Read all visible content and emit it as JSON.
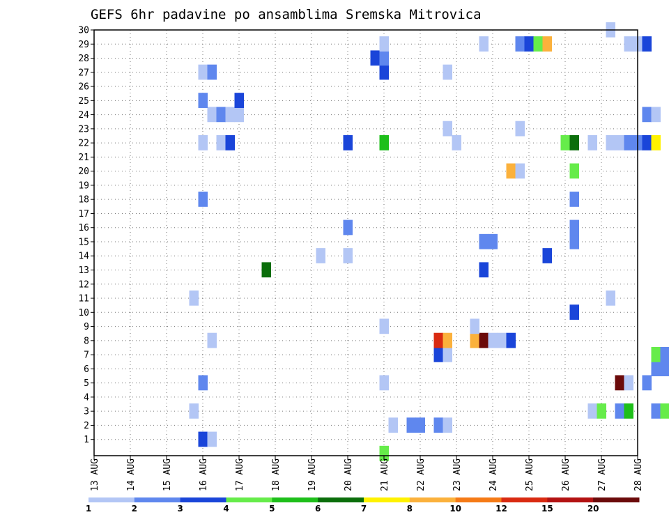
{
  "chart_data": {
    "type": "heatmap",
    "title": "GEFS 6hr padavine po ansamblima Sremska Mitrovica",
    "xlabel": "",
    "ylabel": "",
    "x_tick_labels": [
      "13 AUG",
      "14 AUG",
      "15 AUG",
      "16 AUG",
      "17 AUG",
      "18 AUG",
      "19 AUG",
      "20 AUG",
      "21 AUG",
      "22 AUG",
      "23 AUG",
      "24 AUG",
      "25 AUG",
      "26 AUG",
      "27 AUG",
      "28 AUG"
    ],
    "x_range_days": [
      0,
      15
    ],
    "y_tick_labels": [
      "1",
      "2",
      "3",
      "4",
      "5",
      "6",
      "7",
      "8",
      "9",
      "10",
      "11",
      "12",
      "13",
      "14",
      "15",
      "16",
      "17",
      "18",
      "19",
      "20",
      "21",
      "22",
      "23",
      "24",
      "25",
      "26",
      "27",
      "28",
      "29",
      "30"
    ],
    "y_range": [
      0,
      30
    ],
    "grid": true,
    "legend": {
      "placement": "bottom",
      "colors": [
        "#b3c6f5",
        "#5f87ee",
        "#1a45d9",
        "#66ec4a",
        "#1ebf1a",
        "#0b6e0b",
        "#fff200",
        "#fbb13c",
        "#f57a16",
        "#d92a11",
        "#b31212",
        "#6b0a0a"
      ],
      "labels": [
        "1",
        "2",
        "3",
        "4",
        "5",
        "6",
        "7",
        "8",
        "10",
        "12",
        "15",
        "20"
      ]
    },
    "cells": [
      {
        "day": 3.0,
        "m": 1,
        "c": 2
      },
      {
        "day": 3.25,
        "m": 1,
        "c": 0
      },
      {
        "day": 8.25,
        "m": 2,
        "c": 0
      },
      {
        "day": 8.75,
        "m": 2,
        "c": 1
      },
      {
        "day": 9.0,
        "m": 2,
        "c": 1
      },
      {
        "day": 9.5,
        "m": 2,
        "c": 1
      },
      {
        "day": 9.75,
        "m": 2,
        "c": 0
      },
      {
        "day": 2.75,
        "m": 3,
        "c": 0
      },
      {
        "day": 13.75,
        "m": 3,
        "c": 0
      },
      {
        "day": 14.0,
        "m": 3,
        "c": 3
      },
      {
        "day": 14.5,
        "m": 3,
        "c": 1
      },
      {
        "day": 14.75,
        "m": 3,
        "c": 4
      },
      {
        "day": 15.5,
        "m": 3,
        "c": 1
      },
      {
        "day": 15.75,
        "m": 3,
        "c": 3
      },
      {
        "day": 3.0,
        "m": 5,
        "c": 1
      },
      {
        "day": 8.0,
        "m": 5,
        "c": 0
      },
      {
        "day": 14.5,
        "m": 5,
        "c": 11
      },
      {
        "day": 14.75,
        "m": 5,
        "c": 0
      },
      {
        "day": 15.25,
        "m": 5,
        "c": 1
      },
      {
        "day": 15.5,
        "m": 6,
        "c": 1
      },
      {
        "day": 15.75,
        "m": 6,
        "c": 1
      },
      {
        "day": 9.5,
        "m": 7,
        "c": 2
      },
      {
        "day": 9.75,
        "m": 7,
        "c": 0
      },
      {
        "day": 15.5,
        "m": 7,
        "c": 3
      },
      {
        "day": 15.75,
        "m": 7,
        "c": 1
      },
      {
        "day": 3.25,
        "m": 8,
        "c": 0
      },
      {
        "day": 9.5,
        "m": 8,
        "c": 9
      },
      {
        "day": 9.75,
        "m": 8,
        "c": 7
      },
      {
        "day": 10.5,
        "m": 8,
        "c": 7
      },
      {
        "day": 10.75,
        "m": 8,
        "c": 11
      },
      {
        "day": 11.0,
        "m": 8,
        "c": 0
      },
      {
        "day": 11.25,
        "m": 8,
        "c": 0
      },
      {
        "day": 11.5,
        "m": 8,
        "c": 2
      },
      {
        "day": 8.0,
        "m": 9,
        "c": 0
      },
      {
        "day": 10.5,
        "m": 9,
        "c": 0
      },
      {
        "day": 13.25,
        "m": 10,
        "c": 2
      },
      {
        "day": 2.75,
        "m": 11,
        "c": 0
      },
      {
        "day": 14.25,
        "m": 11,
        "c": 0
      },
      {
        "day": 4.75,
        "m": 13,
        "c": 5
      },
      {
        "day": 10.75,
        "m": 13,
        "c": 2
      },
      {
        "day": 6.25,
        "m": 14,
        "c": 0
      },
      {
        "day": 7.0,
        "m": 14,
        "c": 0
      },
      {
        "day": 12.5,
        "m": 14,
        "c": 2
      },
      {
        "day": 10.75,
        "m": 15,
        "c": 1
      },
      {
        "day": 11.0,
        "m": 15,
        "c": 1
      },
      {
        "day": 13.25,
        "m": 15,
        "c": 1
      },
      {
        "day": 7.0,
        "m": 16,
        "c": 1
      },
      {
        "day": 13.25,
        "m": 16,
        "c": 1
      },
      {
        "day": 3.0,
        "m": 18,
        "c": 1
      },
      {
        "day": 13.25,
        "m": 18,
        "c": 1
      },
      {
        "day": 11.5,
        "m": 20,
        "c": 7
      },
      {
        "day": 11.75,
        "m": 20,
        "c": 0
      },
      {
        "day": 13.25,
        "m": 20,
        "c": 3
      },
      {
        "day": 3.0,
        "m": 22,
        "c": 0
      },
      {
        "day": 3.5,
        "m": 22,
        "c": 0
      },
      {
        "day": 3.75,
        "m": 22,
        "c": 2
      },
      {
        "day": 7.0,
        "m": 22,
        "c": 2
      },
      {
        "day": 8.0,
        "m": 22,
        "c": 4
      },
      {
        "day": 10.0,
        "m": 22,
        "c": 0
      },
      {
        "day": 13.0,
        "m": 22,
        "c": 3
      },
      {
        "day": 13.25,
        "m": 22,
        "c": 5
      },
      {
        "day": 13.75,
        "m": 22,
        "c": 0
      },
      {
        "day": 14.25,
        "m": 22,
        "c": 0
      },
      {
        "day": 14.5,
        "m": 22,
        "c": 0
      },
      {
        "day": 14.75,
        "m": 22,
        "c": 1
      },
      {
        "day": 15.0,
        "m": 22,
        "c": 1
      },
      {
        "day": 15.25,
        "m": 22,
        "c": 2
      },
      {
        "day": 15.5,
        "m": 22,
        "c": 6
      },
      {
        "day": 9.75,
        "m": 23,
        "c": 0
      },
      {
        "day": 11.75,
        "m": 23,
        "c": 0
      },
      {
        "day": 3.25,
        "m": 24,
        "c": 0
      },
      {
        "day": 3.5,
        "m": 24,
        "c": 1
      },
      {
        "day": 3.75,
        "m": 24,
        "c": 0
      },
      {
        "day": 4.0,
        "m": 24,
        "c": 0
      },
      {
        "day": 15.25,
        "m": 24,
        "c": 1
      },
      {
        "day": 15.5,
        "m": 24,
        "c": 0
      },
      {
        "day": 3.0,
        "m": 25,
        "c": 1
      },
      {
        "day": 4.0,
        "m": 25,
        "c": 2
      },
      {
        "day": 3.0,
        "m": 27,
        "c": 0
      },
      {
        "day": 3.25,
        "m": 27,
        "c": 1
      },
      {
        "day": 8.0,
        "m": 27,
        "c": 2
      },
      {
        "day": 9.75,
        "m": 27,
        "c": 0
      },
      {
        "day": 7.75,
        "m": 28,
        "c": 2
      },
      {
        "day": 8.0,
        "m": 28,
        "c": 1
      },
      {
        "day": 8.0,
        "m": 29,
        "c": 0
      },
      {
        "day": 10.75,
        "m": 29,
        "c": 0
      },
      {
        "day": 11.75,
        "m": 29,
        "c": 1
      },
      {
        "day": 12.0,
        "m": 29,
        "c": 2
      },
      {
        "day": 12.25,
        "m": 29,
        "c": 3
      },
      {
        "day": 12.5,
        "m": 29,
        "c": 7
      },
      {
        "day": 14.75,
        "m": 29,
        "c": 0
      },
      {
        "day": 15.0,
        "m": 29,
        "c": 0
      },
      {
        "day": 15.25,
        "m": 29,
        "c": 2
      },
      {
        "day": 14.25,
        "m": 30,
        "c": 0
      },
      {
        "day": 8.0,
        "m": 0,
        "c": 3
      }
    ]
  }
}
